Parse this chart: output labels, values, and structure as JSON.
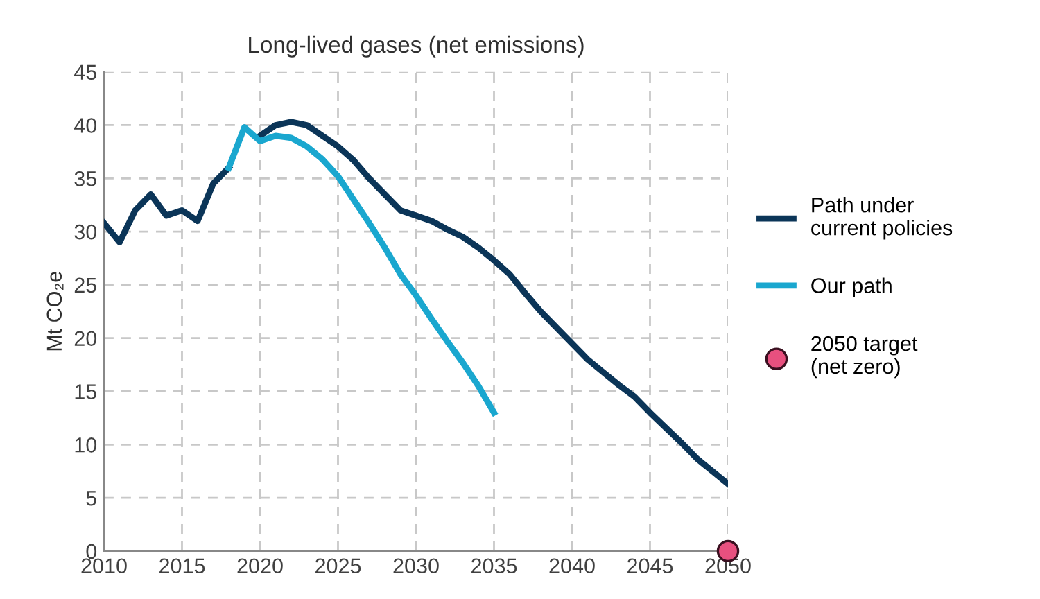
{
  "chart_data": {
    "type": "line",
    "title": "Long-lived gases (net emissions)",
    "ylabel": "Mt CO₂e",
    "x": [
      2010,
      2011,
      2012,
      2013,
      2014,
      2015,
      2016,
      2017,
      2018,
      2019,
      2020,
      2021,
      2022,
      2023,
      2024,
      2025,
      2026,
      2027,
      2028,
      2029,
      2030,
      2031,
      2032,
      2033,
      2034,
      2035,
      2036,
      2037,
      2038,
      2039,
      2040,
      2041,
      2042,
      2043,
      2044,
      2045,
      2046,
      2047,
      2048,
      2049,
      2050
    ],
    "series": [
      {
        "name": "Path under\ncurrent policies",
        "color": "#0b3558",
        "values": [
          30.8,
          29,
          32,
          33.5,
          31.5,
          32,
          31,
          34.5,
          36,
          null,
          39,
          40,
          40.3,
          40,
          39,
          38,
          36.7,
          35,
          33.5,
          32,
          31.5,
          31,
          30.2,
          29.5,
          28.5,
          27.3,
          26,
          24.2,
          22.5,
          21,
          19.5,
          18,
          16.8,
          15.6,
          14.5,
          13,
          11.6,
          10.2,
          8.7,
          7.5,
          6.3
        ]
      },
      {
        "name": "Our path",
        "color": "#1aa7cf",
        "x": [
          2018,
          2019,
          2020,
          2021,
          2022,
          2023,
          2024,
          2025,
          2026,
          2027,
          2028,
          2029,
          2030,
          2031,
          2032,
          2033,
          2034,
          2035
        ],
        "values": [
          36,
          39.8,
          38.5,
          39,
          38.8,
          38,
          36.8,
          35.2,
          33,
          30.8,
          28.5,
          26,
          24,
          21.8,
          19.7,
          17.7,
          15.5,
          13
        ]
      },
      {
        "name": "2050 target\n(net zero)",
        "type": "scatter",
        "marker": "circle",
        "color": "#e8507f",
        "x": [
          2050
        ],
        "values": [
          0
        ]
      }
    ],
    "xlim": [
      2010,
      2050
    ],
    "xticks": [
      2010,
      2015,
      2020,
      2025,
      2030,
      2035,
      2040,
      2045,
      2050
    ],
    "ylim": [
      0,
      45
    ],
    "yticks": [
      0,
      5,
      10,
      15,
      20,
      25,
      30,
      35,
      40,
      45
    ],
    "grid": true,
    "legend": "right",
    "marker": "none",
    "line_style": "solid"
  }
}
